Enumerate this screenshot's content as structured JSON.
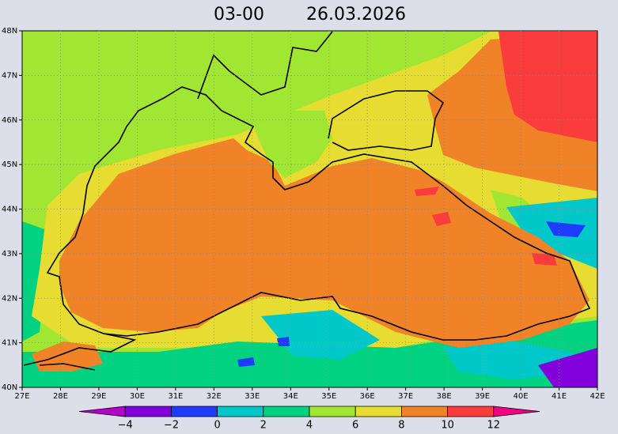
{
  "title": {
    "time": "03-00",
    "date": "26.03.2026"
  },
  "map": {
    "lon_labels": [
      "27E",
      "28E",
      "29E",
      "30E",
      "31E",
      "32E",
      "33E",
      "34E",
      "35E",
      "36E",
      "37E",
      "38E",
      "39E",
      "40E",
      "41E",
      "42E"
    ],
    "lat_labels": [
      "48N",
      "47N",
      "46N",
      "45N",
      "44N",
      "43N",
      "42N",
      "41N",
      "40N"
    ]
  },
  "colorbar": {
    "labels": [
      "−4",
      "−2",
      "0",
      "2",
      "4",
      "6",
      "8",
      "10",
      "12"
    ],
    "colors": [
      "#b400c8",
      "#8200dc",
      "#1e3cff",
      "#00c8c8",
      "#00d282",
      "#a0e632",
      "#e6dc32",
      "#f08228",
      "#fa3c3c",
      "#f00082"
    ]
  }
}
